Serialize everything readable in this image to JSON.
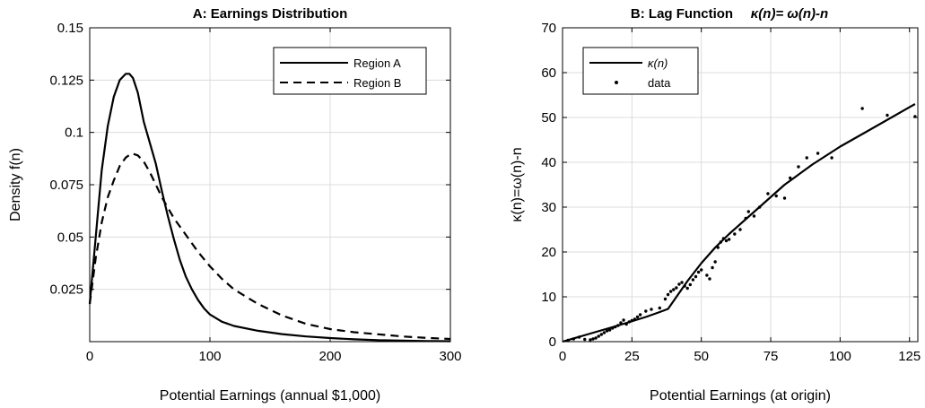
{
  "chart_data": [
    {
      "type": "line",
      "title": "A: Earnings Distribution",
      "xlabel": "Potential Earnings (annual $1,000)",
      "ylabel": "Density f(n)",
      "xlim": [
        0,
        300
      ],
      "ylim": [
        0,
        0.15
      ],
      "xticks": [
        0,
        100,
        200,
        300
      ],
      "xtick_labels": [
        "0",
        "100",
        "200",
        "300"
      ],
      "yticks": [
        0.025,
        0.05,
        0.075,
        0.1,
        0.125,
        0.15
      ],
      "ytick_labels": [
        "0.025",
        "0.05",
        "0.075",
        "0.1",
        "0.125",
        "0.15"
      ],
      "grid": true,
      "legend_position": "top-right",
      "series": [
        {
          "name": "Region A",
          "style": "solid",
          "x": [
            0,
            5,
            10,
            15,
            20,
            25,
            30,
            33,
            36,
            40,
            45,
            50,
            55,
            60,
            65,
            70,
            75,
            80,
            85,
            90,
            95,
            100,
            110,
            120,
            140,
            160,
            180,
            200,
            220,
            240,
            260,
            280,
            300
          ],
          "y": [
            0.018,
            0.05,
            0.082,
            0.103,
            0.117,
            0.125,
            0.128,
            0.128,
            0.126,
            0.119,
            0.105,
            0.095,
            0.085,
            0.072,
            0.06,
            0.049,
            0.039,
            0.031,
            0.025,
            0.02,
            0.016,
            0.013,
            0.0095,
            0.0075,
            0.0052,
            0.0036,
            0.0025,
            0.0017,
            0.0011,
            0.0007,
            0.0005,
            0.0003,
            0.0002
          ]
        },
        {
          "name": "Region B",
          "style": "dashed",
          "x": [
            0,
            5,
            10,
            15,
            20,
            25,
            30,
            35,
            40,
            45,
            50,
            55,
            60,
            65,
            70,
            80,
            90,
            100,
            110,
            120,
            140,
            160,
            180,
            200,
            220,
            240,
            260,
            280,
            300
          ],
          "y": [
            0.018,
            0.04,
            0.057,
            0.069,
            0.077,
            0.084,
            0.088,
            0.09,
            0.089,
            0.086,
            0.081,
            0.075,
            0.069,
            0.064,
            0.059,
            0.051,
            0.043,
            0.036,
            0.03,
            0.025,
            0.018,
            0.0125,
            0.0085,
            0.006,
            0.0045,
            0.0035,
            0.0025,
            0.0018,
            0.0013
          ]
        }
      ]
    },
    {
      "type": "line",
      "title": "B: Lag Function",
      "title_formula": "κ(n)= ω(n)-n",
      "xlabel": "Potential Earnings (at origin)",
      "ylabel": "κ(n)=ω(n)-n",
      "xlim": [
        0,
        128
      ],
      "ylim": [
        0,
        70
      ],
      "xticks": [
        0,
        25,
        50,
        75,
        100,
        125
      ],
      "xtick_labels": [
        "0",
        "25",
        "50",
        "75",
        "100",
        "125"
      ],
      "yticks": [
        0,
        10,
        20,
        30,
        40,
        50,
        60,
        70
      ],
      "ytick_labels": [
        "0",
        "10",
        "20",
        "30",
        "40",
        "50",
        "60",
        "70"
      ],
      "grid": true,
      "legend_position": "top-left",
      "series": [
        {
          "name": "κ(n)",
          "style": "solid",
          "x": [
            0,
            10,
            20,
            30,
            35,
            38,
            45,
            50,
            55,
            60,
            70,
            80,
            90,
            100,
            110,
            127
          ],
          "y": [
            0,
            1.8,
            3.6,
            5.5,
            6.6,
            7.3,
            13.5,
            17.5,
            21.0,
            24.0,
            29.5,
            35.0,
            39.5,
            43.5,
            47.0,
            53.0
          ]
        },
        {
          "name": "data",
          "style": "points",
          "x": [
            2,
            4,
            6,
            8,
            10,
            11,
            12,
            13,
            14,
            15,
            16,
            17,
            18,
            19,
            20,
            21,
            22,
            23,
            24,
            25,
            26,
            27,
            28,
            30,
            32,
            35,
            37,
            38,
            39,
            40,
            41,
            42,
            43,
            44,
            45,
            46,
            47,
            48,
            49,
            50,
            52,
            53,
            54,
            55,
            56,
            57,
            58,
            59,
            60,
            62,
            64,
            66,
            67,
            69,
            71,
            74,
            77,
            80,
            82,
            85,
            88,
            92,
            97,
            108,
            117,
            127
          ],
          "y": [
            0.3,
            0.6,
            1.0,
            0.5,
            0.4,
            0.6,
            0.8,
            1.2,
            1.6,
            2.0,
            2.4,
            2.6,
            3.0,
            3.3,
            3.6,
            4.2,
            4.8,
            3.9,
            4.4,
            4.7,
            5.0,
            5.5,
            6.0,
            6.8,
            7.2,
            7.5,
            9.5,
            10.5,
            11.2,
            11.6,
            12.0,
            12.8,
            13.2,
            12.4,
            11.9,
            12.7,
            13.8,
            14.5,
            15.5,
            16.0,
            14.8,
            14.0,
            16.5,
            17.8,
            21.0,
            22.2,
            23.0,
            22.5,
            22.8,
            24.0,
            25.0,
            27.5,
            29.0,
            28.0,
            30.0,
            33.0,
            32.5,
            32.0,
            36.5,
            39.0,
            41.0,
            42.0,
            41.0,
            52.0,
            50.5,
            50.2
          ]
        }
      ]
    }
  ]
}
